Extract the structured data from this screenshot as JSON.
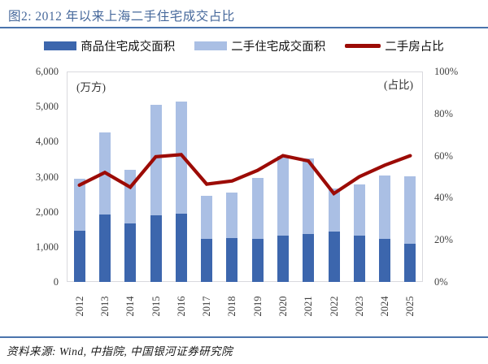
{
  "figure": {
    "title": "图2: 2012 年以来上海二手住宅成交占比",
    "source": "资料来源: Wind, 中指院, 中国银河证券研究院"
  },
  "legend": [
    {
      "label": "商品住宅成交面积",
      "swatch": "bar",
      "color": "#3c66ad"
    },
    {
      "label": "二手住宅成交面积",
      "swatch": "bar",
      "color": "#aabfe4"
    },
    {
      "label": "二手房占比",
      "swatch": "line",
      "color": "#9c0b06"
    }
  ],
  "chart_data": {
    "type": "bar",
    "subtype": "stacked-bars-with-line",
    "categories": [
      "2012",
      "2013",
      "2014",
      "2015",
      "2016",
      "2017",
      "2018",
      "2019",
      "2020",
      "2021",
      "2022",
      "2023",
      "2024",
      "2025"
    ],
    "series": [
      {
        "name": "商品住宅成交面积",
        "type": "bar",
        "stack": "a",
        "color": "#3c66ad",
        "values": [
          1470,
          1920,
          1670,
          1910,
          1940,
          1230,
          1240,
          1230,
          1310,
          1370,
          1430,
          1330,
          1230,
          1080
        ]
      },
      {
        "name": "二手住宅成交面积",
        "type": "bar",
        "stack": "a",
        "color": "#aabfe4",
        "values": [
          1470,
          2340,
          1530,
          3130,
          3200,
          1230,
          1310,
          1740,
          2280,
          2140,
          1240,
          1450,
          1810,
          1940
        ]
      },
      {
        "name": "二手房占比",
        "type": "line",
        "axis": "right",
        "color": "#9c0b06",
        "values": [
          46,
          52,
          45,
          59.5,
          60.5,
          46.5,
          48,
          53,
          60,
          57.5,
          42,
          50,
          55.5,
          60
        ]
      }
    ],
    "left_axis": {
      "label": "(万方)",
      "min": 0,
      "max": 6000,
      "ticks": [
        "6,000",
        "5,000",
        "4,000",
        "3,000",
        "2,000",
        "1,000",
        "0"
      ]
    },
    "right_axis": {
      "label": "(占比)",
      "min": 0,
      "max": 100,
      "ticks": [
        "100%",
        "80%",
        "60%",
        "40%",
        "20%",
        "0%"
      ]
    },
    "grid": false,
    "legend_position": "top"
  },
  "colors": {
    "title": "#46689b",
    "rule": "#4a74ad",
    "plot_border": "#d9d9de",
    "tick_text": "#404040"
  }
}
